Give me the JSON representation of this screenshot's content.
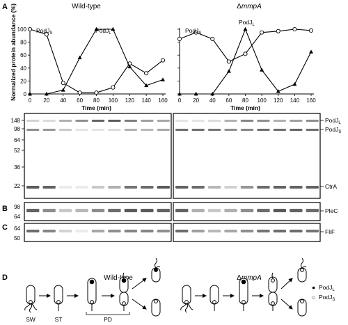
{
  "panels": {
    "a": "A",
    "b": "B",
    "c": "C",
    "d": "D"
  },
  "titles": {
    "left": "Wild-type",
    "right_prefix": "Δ",
    "right_gene": "mmpA"
  },
  "chart_data": [
    {
      "type": "line",
      "title": "Wild-type",
      "xlabel": "Time (min)",
      "ylabel": "Normalized protein abundance (%)",
      "xlim": [
        0,
        160
      ],
      "ylim": [
        0,
        100
      ],
      "x": [
        0,
        20,
        40,
        60,
        80,
        100,
        120,
        140,
        160
      ],
      "xticks": [
        "0",
        "20",
        "40",
        "60",
        "80",
        "100",
        "120",
        "140",
        "160"
      ],
      "yticks": [
        "0",
        "20",
        "40",
        "60",
        "80",
        "100"
      ],
      "series": [
        {
          "name": "PodJS",
          "marker": "open-circle",
          "values": [
            100,
            92,
            17,
            2,
            2,
            10,
            47,
            32,
            52
          ]
        },
        {
          "name": "PodJL",
          "marker": "filled-triangle",
          "values": [
            0,
            0,
            6,
            56,
            100,
            100,
            42,
            13,
            22
          ]
        }
      ],
      "annotations": [
        {
          "base": "PodJ",
          "sub": "S"
        },
        {
          "base": "PodJ",
          "sub": "L"
        }
      ]
    },
    {
      "type": "line",
      "title": "ΔmmpA",
      "xlabel": "Time (min)",
      "ylabel": "",
      "xlim": [
        0,
        160
      ],
      "ylim": [
        0,
        100
      ],
      "x": [
        0,
        20,
        40,
        60,
        80,
        100,
        120,
        140,
        160
      ],
      "xticks": [
        "0",
        "20",
        "40",
        "60",
        "80",
        "100",
        "120",
        "140",
        "160"
      ],
      "yticks": [
        "0",
        "20",
        "40",
        "60",
        "80",
        "100"
      ],
      "series": [
        {
          "name": "PodJS",
          "marker": "open-circle",
          "values": [
            85,
            95,
            85,
            50,
            62,
            95,
            97,
            100,
            98
          ]
        },
        {
          "name": "PodJL",
          "marker": "filled-triangle",
          "values": [
            0,
            0,
            0,
            35,
            100,
            37,
            4,
            15,
            65
          ]
        }
      ],
      "annotations": [
        {
          "base": "PodJ",
          "sub": "S"
        },
        {
          "base": "PodJ",
          "sub": "L"
        }
      ]
    }
  ],
  "blots": {
    "mw_a": [
      "148",
      "98",
      "64",
      "52",
      "36",
      "22"
    ],
    "mw_b": [
      "98",
      "64"
    ],
    "mw_c": [
      "64",
      "50"
    ],
    "labels": {
      "podjl": {
        "base": "PodJ",
        "sub": "L"
      },
      "podjs": {
        "base": "PodJ",
        "sub": "S"
      },
      "ctra": "CtrA",
      "plec": "PleC",
      "flif": "FliF"
    },
    "intensity": {
      "wt_podjl": [
        0.15,
        0.1,
        0.35,
        0.55,
        0.8,
        0.85,
        0.65,
        0.45,
        0.4
      ],
      "wt_podjs": [
        0.55,
        0.5,
        0.2,
        0.05,
        0.05,
        0.1,
        0.35,
        0.3,
        0.4
      ],
      "wt_ctra": [
        0.85,
        0.8,
        0.0,
        0.0,
        0.2,
        0.35,
        0.7,
        0.75,
        0.85
      ],
      "wt_plec": [
        0.8,
        0.55,
        0.2,
        0.3,
        0.55,
        0.75,
        0.85,
        0.85,
        0.8
      ],
      "wt_flif": [
        0.75,
        0.6,
        0.15,
        0.0,
        0.4,
        0.55,
        0.6,
        0.6,
        0.55
      ],
      "mu_podjl": [
        0.05,
        0.05,
        0.1,
        0.35,
        0.6,
        0.55,
        0.35,
        0.45,
        0.55
      ],
      "mu_podjs": [
        0.75,
        0.75,
        0.7,
        0.55,
        0.6,
        0.75,
        0.75,
        0.8,
        0.75
      ],
      "mu_ctra": [
        0.8,
        0.75,
        0.3,
        0.15,
        0.5,
        0.75,
        0.8,
        0.8,
        0.8
      ],
      "mu_plec": [
        0.8,
        0.35,
        0.2,
        0.35,
        0.55,
        0.75,
        0.85,
        0.8,
        0.75
      ],
      "mu_flif": [
        0.75,
        0.45,
        0.3,
        0.4,
        0.55,
        0.7,
        0.75,
        0.75,
        0.7
      ]
    }
  },
  "panel_d": {
    "stages": {
      "sw": "SW",
      "st": "ST",
      "pd": "PD"
    },
    "legend": [
      {
        "symbol": "●",
        "base": "PodJ",
        "sub": "L"
      },
      {
        "symbol": "○",
        "base": "PodJ",
        "sub": "S"
      }
    ]
  }
}
